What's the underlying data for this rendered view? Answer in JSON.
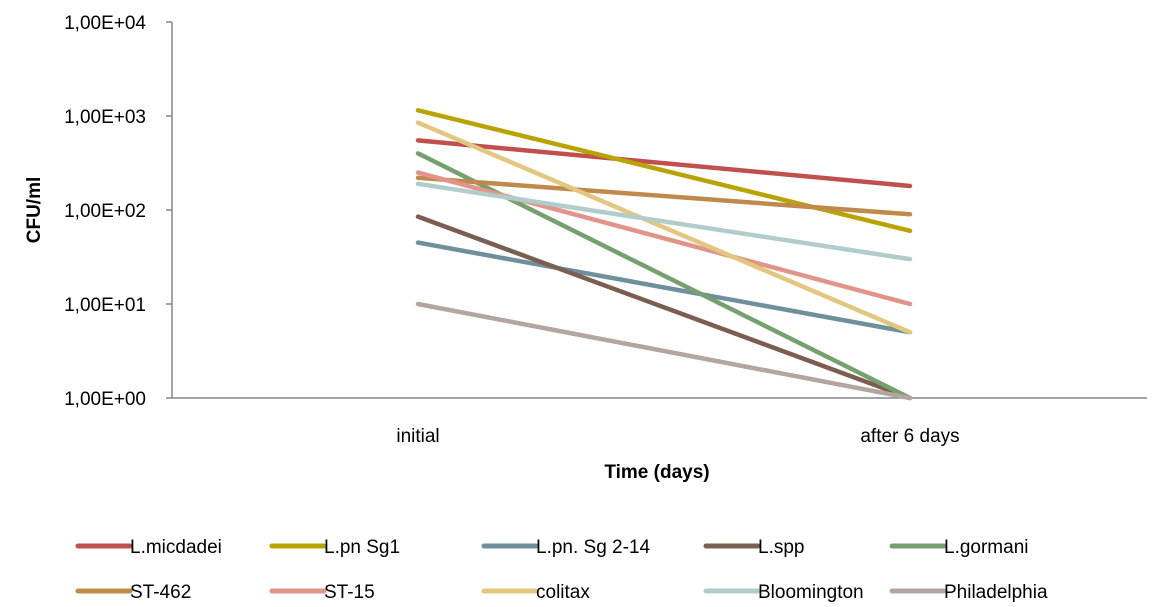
{
  "chart_data": {
    "type": "line",
    "title": "",
    "xlabel": "Time (days)",
    "ylabel": "CFU/ml",
    "y_scale": "log",
    "ylim": [
      1,
      10000
    ],
    "yticks": [
      1,
      10,
      100,
      1000,
      10000
    ],
    "ytick_labels": [
      "1,00E+00",
      "1,00E+01",
      "1,00E+02",
      "1,00E+03",
      "1,00E+04"
    ],
    "categories": [
      "initial",
      "after 6 days"
    ],
    "grid": false,
    "legend_position": "bottom",
    "series": [
      {
        "name": "L.micdadei",
        "color": "#c0504d",
        "values": [
          550,
          180
        ]
      },
      {
        "name": "L.pn Sg1",
        "color": "#b8a300",
        "values": [
          1150,
          60
        ]
      },
      {
        "name": "L.pn. Sg 2-14",
        "color": "#6f8f9a",
        "values": [
          45,
          5
        ]
      },
      {
        "name": "L.spp",
        "color": "#7b5e52",
        "values": [
          85,
          1
        ]
      },
      {
        "name": "L.gormani",
        "color": "#76a06e",
        "values": [
          400,
          1
        ]
      },
      {
        "name": "ST-462",
        "color": "#c08a4d",
        "values": [
          220,
          90
        ]
      },
      {
        "name": "ST-15",
        "color": "#e0948a",
        "values": [
          250,
          10
        ]
      },
      {
        "name": "colitax",
        "color": "#e3c780",
        "values": [
          850,
          5
        ]
      },
      {
        "name": "Bloomington",
        "color": "#b2cccc",
        "values": [
          190,
          30
        ]
      },
      {
        "name": "Philadelphia",
        "color": "#b3a5a0",
        "values": [
          10,
          1
        ]
      }
    ]
  }
}
